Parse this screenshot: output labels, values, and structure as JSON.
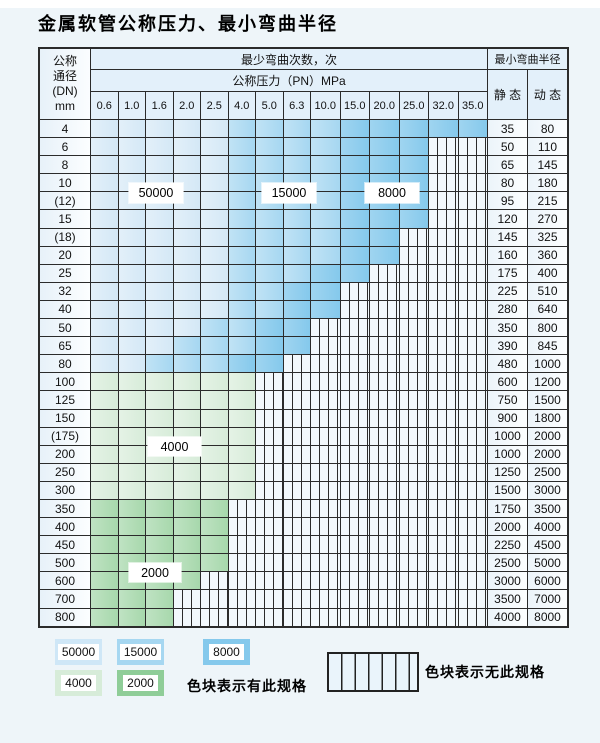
{
  "title": "金属软管公称压力、最小弯曲半径",
  "table": {
    "dn_header_lines": [
      "公称",
      "通径",
      "(DN)",
      "mm"
    ],
    "bend_cycles_header": "最少弯曲次数，次",
    "pressure_header": "公称压力（PN）MPa",
    "radius_header": "最小弯曲半径",
    "static_header": "静 态",
    "dynamic_header": "动 态",
    "pressure_columns": [
      "0.6",
      "1.0",
      "1.6",
      "2.0",
      "2.5",
      "4.0",
      "5.0",
      "6.3",
      "10.0",
      "15.0",
      "20.0",
      "25.0",
      "32.0",
      "35.0"
    ],
    "zone_overlay_labels": [
      {
        "text": "50000"
      },
      {
        "text": "15000"
      },
      {
        "text": "8000"
      },
      {
        "text": "4000"
      },
      {
        "text": "2000"
      }
    ],
    "zone_legend_meaning": {
      "L": "50000次-浅蓝",
      "M": "15000次-中蓝",
      "D": "8000次-深蓝",
      "G": "4000次-浅绿",
      "H": "2000次-深绿",
      "X": "无此规格-条纹"
    },
    "rows": [
      {
        "dn": "4",
        "cells": [
          "L",
          "L",
          "L",
          "L",
          "L",
          "M",
          "M",
          "M",
          "M",
          "D",
          "D",
          "D",
          "D",
          "D"
        ],
        "static": "35",
        "dynamic": "80"
      },
      {
        "dn": "6",
        "cells": [
          "L",
          "L",
          "L",
          "L",
          "L",
          "M",
          "M",
          "M",
          "M",
          "D",
          "D",
          "D",
          "X",
          "X"
        ],
        "static": "50",
        "dynamic": "110"
      },
      {
        "dn": "8",
        "cells": [
          "L",
          "L",
          "L",
          "L",
          "L",
          "M",
          "M",
          "M",
          "M",
          "D",
          "D",
          "D",
          "X",
          "X"
        ],
        "static": "65",
        "dynamic": "145"
      },
      {
        "dn": "10",
        "cells": [
          "L",
          "L",
          "L",
          "L",
          "L",
          "M",
          "M",
          "M",
          "M",
          "D",
          "D",
          "D",
          "X",
          "X"
        ],
        "static": "80",
        "dynamic": "180"
      },
      {
        "dn": "(12)",
        "cells": [
          "L",
          "L",
          "L",
          "L",
          "L",
          "M",
          "M",
          "M",
          "M",
          "D",
          "D",
          "D",
          "X",
          "X"
        ],
        "static": "95",
        "dynamic": "215"
      },
      {
        "dn": "15",
        "cells": [
          "L",
          "L",
          "L",
          "L",
          "L",
          "M",
          "M",
          "M",
          "M",
          "D",
          "D",
          "D",
          "X",
          "X"
        ],
        "static": "120",
        "dynamic": "270"
      },
      {
        "dn": "(18)",
        "cells": [
          "L",
          "L",
          "L",
          "L",
          "L",
          "M",
          "M",
          "M",
          "M",
          "D",
          "D",
          "X",
          "X",
          "X"
        ],
        "static": "145",
        "dynamic": "325"
      },
      {
        "dn": "20",
        "cells": [
          "L",
          "L",
          "L",
          "L",
          "L",
          "M",
          "M",
          "M",
          "M",
          "D",
          "D",
          "X",
          "X",
          "X"
        ],
        "static": "160",
        "dynamic": "360"
      },
      {
        "dn": "25",
        "cells": [
          "L",
          "L",
          "L",
          "L",
          "L",
          "M",
          "M",
          "M",
          "D",
          "D",
          "X",
          "X",
          "X",
          "X"
        ],
        "static": "175",
        "dynamic": "400"
      },
      {
        "dn": "32",
        "cells": [
          "L",
          "L",
          "L",
          "L",
          "L",
          "M",
          "M",
          "D",
          "D",
          "X",
          "X",
          "X",
          "X",
          "X"
        ],
        "static": "225",
        "dynamic": "510"
      },
      {
        "dn": "40",
        "cells": [
          "L",
          "L",
          "L",
          "L",
          "L",
          "M",
          "M",
          "D",
          "D",
          "X",
          "X",
          "X",
          "X",
          "X"
        ],
        "static": "280",
        "dynamic": "640"
      },
      {
        "dn": "50",
        "cells": [
          "L",
          "L",
          "L",
          "L",
          "M",
          "M",
          "D",
          "D",
          "X",
          "X",
          "X",
          "X",
          "X",
          "X"
        ],
        "static": "350",
        "dynamic": "800"
      },
      {
        "dn": "65",
        "cells": [
          "L",
          "L",
          "L",
          "M",
          "M",
          "M",
          "D",
          "D",
          "X",
          "X",
          "X",
          "X",
          "X",
          "X"
        ],
        "static": "390",
        "dynamic": "845"
      },
      {
        "dn": "80",
        "cells": [
          "L",
          "L",
          "M",
          "M",
          "M",
          "D",
          "D",
          "X",
          "X",
          "X",
          "X",
          "X",
          "X",
          "X"
        ],
        "static": "480",
        "dynamic": "1000"
      },
      {
        "dn": "100",
        "cells": [
          "G",
          "G",
          "G",
          "G",
          "G",
          "G",
          "X",
          "X",
          "X",
          "X",
          "X",
          "X",
          "X",
          "X"
        ],
        "static": "600",
        "dynamic": "1200"
      },
      {
        "dn": "125",
        "cells": [
          "G",
          "G",
          "G",
          "G",
          "G",
          "G",
          "X",
          "X",
          "X",
          "X",
          "X",
          "X",
          "X",
          "X"
        ],
        "static": "750",
        "dynamic": "1500"
      },
      {
        "dn": "150",
        "cells": [
          "G",
          "G",
          "G",
          "G",
          "G",
          "G",
          "X",
          "X",
          "X",
          "X",
          "X",
          "X",
          "X",
          "X"
        ],
        "static": "900",
        "dynamic": "1800"
      },
      {
        "dn": "(175)",
        "cells": [
          "G",
          "G",
          "G",
          "G",
          "G",
          "G",
          "X",
          "X",
          "X",
          "X",
          "X",
          "X",
          "X",
          "X"
        ],
        "static": "1000",
        "dynamic": "2000"
      },
      {
        "dn": "200",
        "cells": [
          "G",
          "G",
          "G",
          "G",
          "G",
          "G",
          "X",
          "X",
          "X",
          "X",
          "X",
          "X",
          "X",
          "X"
        ],
        "static": "1000",
        "dynamic": "2000"
      },
      {
        "dn": "250",
        "cells": [
          "G",
          "G",
          "G",
          "G",
          "G",
          "G",
          "X",
          "X",
          "X",
          "X",
          "X",
          "X",
          "X",
          "X"
        ],
        "static": "1250",
        "dynamic": "2500"
      },
      {
        "dn": "300",
        "cells": [
          "G",
          "G",
          "G",
          "G",
          "G",
          "G",
          "X",
          "X",
          "X",
          "X",
          "X",
          "X",
          "X",
          "X"
        ],
        "static": "1500",
        "dynamic": "3000"
      },
      {
        "dn": "350",
        "cells": [
          "H",
          "H",
          "H",
          "H",
          "H",
          "X",
          "X",
          "X",
          "X",
          "X",
          "X",
          "X",
          "X",
          "X"
        ],
        "static": "1750",
        "dynamic": "3500"
      },
      {
        "dn": "400",
        "cells": [
          "H",
          "H",
          "H",
          "H",
          "H",
          "X",
          "X",
          "X",
          "X",
          "X",
          "X",
          "X",
          "X",
          "X"
        ],
        "static": "2000",
        "dynamic": "4000"
      },
      {
        "dn": "450",
        "cells": [
          "H",
          "H",
          "H",
          "H",
          "H",
          "X",
          "X",
          "X",
          "X",
          "X",
          "X",
          "X",
          "X",
          "X"
        ],
        "static": "2250",
        "dynamic": "4500"
      },
      {
        "dn": "500",
        "cells": [
          "H",
          "H",
          "H",
          "H",
          "H",
          "X",
          "X",
          "X",
          "X",
          "X",
          "X",
          "X",
          "X",
          "X"
        ],
        "static": "2500",
        "dynamic": "5000"
      },
      {
        "dn": "600",
        "cells": [
          "H",
          "H",
          "H",
          "H",
          "X",
          "X",
          "X",
          "X",
          "X",
          "X",
          "X",
          "X",
          "X",
          "X"
        ],
        "static": "3000",
        "dynamic": "6000"
      },
      {
        "dn": "700",
        "cells": [
          "H",
          "H",
          "H",
          "X",
          "X",
          "X",
          "X",
          "X",
          "X",
          "X",
          "X",
          "X",
          "X",
          "X"
        ],
        "static": "3500",
        "dynamic": "7000"
      },
      {
        "dn": "800",
        "cells": [
          "H",
          "H",
          "H",
          "X",
          "X",
          "X",
          "X",
          "X",
          "X",
          "X",
          "X",
          "X",
          "X",
          "X"
        ],
        "static": "4000",
        "dynamic": "8000"
      }
    ]
  },
  "legend": {
    "swatches": [
      {
        "label": "50000",
        "color": "#cfe7f7"
      },
      {
        "label": "15000",
        "color": "#a6d7f1"
      },
      {
        "label": "8000",
        "color": "#85c9ec"
      },
      {
        "label": "4000",
        "color": "#d7ecd9"
      },
      {
        "label": "2000",
        "color": "#8fcd98"
      }
    ],
    "has_spec_text": "色块表示有此规格",
    "no_spec_text": "色块表示无此规格"
  },
  "colors": {
    "light_blue": "#d4e8f6",
    "medium_blue": "#a6d7f1",
    "dark_blue": "#85c9ec",
    "light_green": "#d7ecd9",
    "medium_green": "#a7d8ac",
    "header_bg": "#e3f0fa",
    "grid_line": "#2b2b2b",
    "page_bg": "#eef5f9"
  }
}
